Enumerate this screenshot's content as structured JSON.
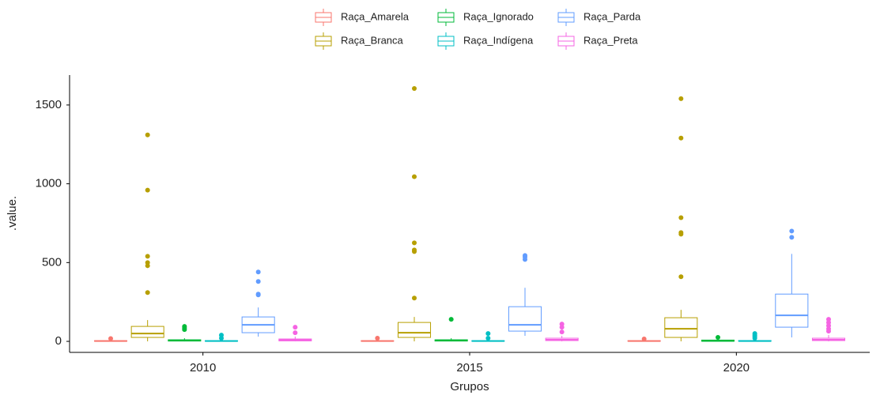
{
  "chart_data": {
    "type": "boxplot",
    "x_label": "Grupos",
    "y_label": ".value.",
    "categories": [
      "2010",
      "2015",
      "2020"
    ],
    "ylim": [
      -70,
      1690
    ],
    "yticks": [
      0,
      500,
      1000,
      1500
    ],
    "grid": false,
    "legend": "top",
    "series": [
      {
        "name": "Raça_Amarela",
        "color": "#F8766D",
        "values": [
          {
            "min": 0,
            "q1": 1,
            "median": 2,
            "q3": 4,
            "max": 8,
            "outliers": [
              18
            ]
          },
          {
            "min": 0,
            "q1": 1,
            "median": 2,
            "q3": 4,
            "max": 8,
            "outliers": [
              20
            ]
          },
          {
            "min": 0,
            "q1": 1,
            "median": 2,
            "q3": 4,
            "max": 8,
            "outliers": [
              15
            ]
          }
        ]
      },
      {
        "name": "Raça_Branca",
        "color": "#B79F00",
        "values": [
          {
            "min": 0,
            "q1": 25,
            "median": 50,
            "q3": 95,
            "max": 135,
            "outliers": [
              310,
              480,
              500,
              540,
              960,
              1310
            ]
          },
          {
            "min": 0,
            "q1": 25,
            "median": 55,
            "q3": 120,
            "max": 155,
            "outliers": [
              275,
              570,
              580,
              625,
              1045,
              1605
            ]
          },
          {
            "min": 0,
            "q1": 25,
            "median": 80,
            "q3": 150,
            "max": 200,
            "outliers": [
              410,
              680,
              690,
              785,
              1290,
              1540
            ]
          }
        ]
      },
      {
        "name": "Raça_Ignorado",
        "color": "#00BA38",
        "values": [
          {
            "min": 0,
            "q1": 2,
            "median": 5,
            "q3": 10,
            "max": 20,
            "outliers": [
              75,
              85,
              95
            ]
          },
          {
            "min": 0,
            "q1": 2,
            "median": 5,
            "q3": 10,
            "max": 20,
            "outliers": [
              140
            ]
          },
          {
            "min": 0,
            "q1": 1,
            "median": 3,
            "q3": 8,
            "max": 15,
            "outliers": [
              25
            ]
          }
        ]
      },
      {
        "name": "Raça_Indígena",
        "color": "#00BFC4",
        "values": [
          {
            "min": 0,
            "q1": 1,
            "median": 2,
            "q3": 4,
            "max": 8,
            "outliers": [
              20,
              40
            ]
          },
          {
            "min": 0,
            "q1": 1,
            "median": 2,
            "q3": 4,
            "max": 8,
            "outliers": [
              20,
              50
            ]
          },
          {
            "min": 0,
            "q1": 1,
            "median": 2,
            "q3": 5,
            "max": 10,
            "outliers": [
              20,
              30,
              40,
              50
            ]
          }
        ]
      },
      {
        "name": "Raça_Parda",
        "color": "#619CFF",
        "values": [
          {
            "min": 30,
            "q1": 55,
            "median": 105,
            "q3": 155,
            "max": 215,
            "outliers": [
              295,
              300,
              380,
              440
            ]
          },
          {
            "min": 35,
            "q1": 65,
            "median": 105,
            "q3": 220,
            "max": 340,
            "outliers": [
              520,
              535,
              545
            ]
          },
          {
            "min": 25,
            "q1": 90,
            "median": 165,
            "q3": 300,
            "max": 555,
            "outliers": [
              660,
              700
            ]
          }
        ]
      },
      {
        "name": "Raça_Preta",
        "color": "#F564E3",
        "values": [
          {
            "min": 0,
            "q1": 3,
            "median": 8,
            "q3": 15,
            "max": 30,
            "outliers": [
              55,
              90
            ]
          },
          {
            "min": 0,
            "q1": 5,
            "median": 10,
            "q3": 20,
            "max": 35,
            "outliers": [
              60,
              90,
              110
            ]
          },
          {
            "min": 0,
            "q1": 5,
            "median": 10,
            "q3": 20,
            "max": 40,
            "outliers": [
              65,
              80,
              100,
              120,
              140
            ]
          }
        ]
      }
    ]
  }
}
